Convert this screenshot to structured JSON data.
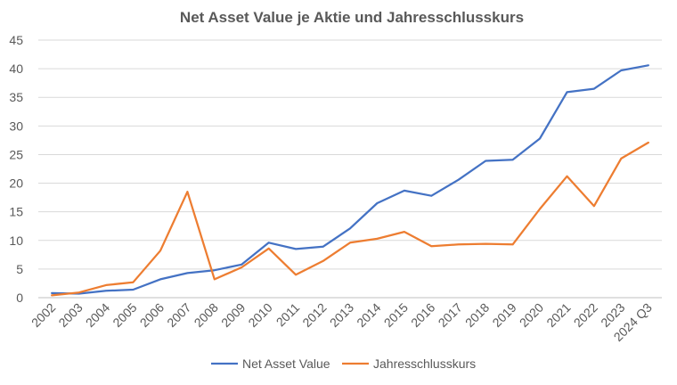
{
  "chart_data": {
    "type": "line",
    "title": "Net Asset Value je Aktie und Jahresschlusskurs",
    "xlabel": "",
    "ylabel": "",
    "ylim": [
      0,
      45
    ],
    "yticks": [
      0,
      5,
      10,
      15,
      20,
      25,
      30,
      35,
      40,
      45
    ],
    "grid": true,
    "legend_position": "bottom",
    "categories": [
      "2002",
      "2003",
      "2004",
      "2005",
      "2006",
      "2007",
      "2008",
      "2009",
      "2010",
      "2011",
      "2012",
      "2013",
      "2014",
      "2015",
      "2016",
      "2017",
      "2018",
      "2019",
      "2020",
      "2021",
      "2022",
      "2023",
      "2024 Q3"
    ],
    "series": [
      {
        "name": "Net Asset Value",
        "color": "#4472C4",
        "values": [
          0.8,
          0.7,
          1.2,
          1.4,
          3.2,
          4.3,
          4.8,
          5.8,
          9.6,
          8.5,
          8.9,
          12.1,
          16.5,
          18.7,
          17.8,
          20.6,
          23.9,
          24.1,
          27.8,
          35.9,
          36.5,
          39.7,
          40.6
        ]
      },
      {
        "name": "Jahresschlusskurs",
        "color": "#ED7D31",
        "values": [
          0.4,
          0.9,
          2.2,
          2.7,
          8.2,
          18.5,
          3.2,
          5.3,
          8.6,
          4.0,
          6.4,
          9.6,
          10.3,
          11.5,
          9.0,
          9.3,
          9.4,
          9.3,
          15.5,
          21.2,
          16.0,
          24.3,
          27.1
        ]
      }
    ]
  }
}
